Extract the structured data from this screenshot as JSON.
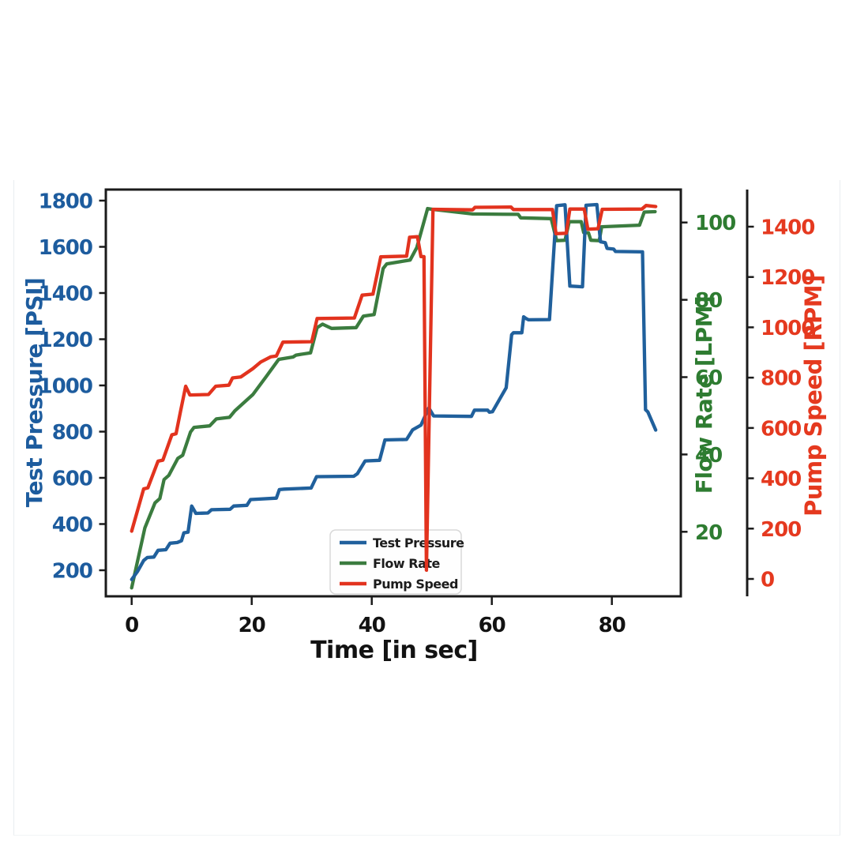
{
  "chart_data": {
    "type": "line",
    "title": "",
    "legend": {
      "position": "lower center"
    },
    "axes": {
      "x": {
        "label": "Time [in sec]",
        "ticks": [
          0,
          20,
          40,
          60,
          80
        ],
        "range": [
          -4,
          91.5
        ],
        "color": "#121212"
      },
      "pressure": {
        "label": "Test Pressure [PSI]",
        "ticks": [
          200,
          400,
          600,
          800,
          1000,
          1200,
          1400,
          1600,
          1800
        ],
        "range": [
          60,
          1845
        ],
        "side": "left",
        "color": "#1d5c9e"
      },
      "flow": {
        "label": "Flow Rate [LPM]",
        "ticks": [
          20,
          40,
          60,
          80,
          100
        ],
        "range": [
          3,
          108
        ],
        "side": "right",
        "color": "#2e7c31"
      },
      "speed": {
        "label": "Pump Speed [RPM]",
        "ticks": [
          0,
          200,
          400,
          600,
          800,
          1000,
          1200,
          1400
        ],
        "range": [
          -70,
          1545
        ],
        "side": "right-offset",
        "color": "#e5391f"
      }
    },
    "series": [
      {
        "name": "Test Pressure",
        "axis": "pressure",
        "color": "#20609c",
        "zorder": 2,
        "points": [
          [
            0,
            160
          ],
          [
            1,
            196
          ],
          [
            2,
            242
          ],
          [
            2.6,
            255
          ],
          [
            3.7,
            257
          ],
          [
            4.4,
            286
          ],
          [
            5.7,
            289
          ],
          [
            6.4,
            317
          ],
          [
            7.6,
            320
          ],
          [
            8.3,
            328
          ],
          [
            8.7,
            362
          ],
          [
            9.4,
            365
          ],
          [
            10,
            478
          ],
          [
            10.7,
            446
          ],
          [
            12.7,
            448
          ],
          [
            13.3,
            462
          ],
          [
            16.4,
            464
          ],
          [
            17,
            478
          ],
          [
            19.2,
            481
          ],
          [
            19.8,
            506
          ],
          [
            24.1,
            512
          ],
          [
            24.6,
            549
          ],
          [
            25.4,
            551
          ],
          [
            29.9,
            556
          ],
          [
            30.8,
            605
          ],
          [
            37,
            607
          ],
          [
            37.6,
            618
          ],
          [
            38.9,
            673
          ],
          [
            41.3,
            676
          ],
          [
            42.2,
            764
          ],
          [
            45.8,
            766
          ],
          [
            46.8,
            808
          ],
          [
            48.2,
            828
          ],
          [
            49.5,
            903
          ],
          [
            50.3,
            868
          ],
          [
            56.6,
            866
          ],
          [
            57.1,
            893
          ],
          [
            59.3,
            893
          ],
          [
            59.6,
            884
          ],
          [
            60.1,
            886
          ],
          [
            62.4,
            990
          ],
          [
            63.3,
            1220
          ],
          [
            63.6,
            1228
          ],
          [
            65,
            1228
          ],
          [
            65.3,
            1297
          ],
          [
            65.7,
            1290
          ],
          [
            66.1,
            1284
          ],
          [
            69.6,
            1285
          ],
          [
            70.8,
            1778
          ],
          [
            72.2,
            1782
          ],
          [
            73,
            1430
          ],
          [
            75.1,
            1427
          ],
          [
            75.7,
            1780
          ],
          [
            77.5,
            1783
          ],
          [
            78.1,
            1622
          ],
          [
            78.9,
            1618
          ],
          [
            79.2,
            1593
          ],
          [
            80.3,
            1590
          ],
          [
            80.6,
            1580
          ],
          [
            85.1,
            1578
          ],
          [
            85.6,
            895
          ],
          [
            86,
            885
          ],
          [
            87.3,
            807
          ]
        ]
      },
      {
        "name": "Flow Rate",
        "axis": "flow",
        "color": "#3b7c3f",
        "zorder": 1,
        "points": [
          [
            0,
            5.5
          ],
          [
            2.2,
            21
          ],
          [
            3.9,
            27.5
          ],
          [
            4.7,
            28.6
          ],
          [
            5.4,
            33.5
          ],
          [
            6.2,
            34.6
          ],
          [
            7.7,
            39
          ],
          [
            8.5,
            39.8
          ],
          [
            9.8,
            45.8
          ],
          [
            10.4,
            47
          ],
          [
            13,
            47.4
          ],
          [
            14.1,
            49.2
          ],
          [
            16.3,
            49.6
          ],
          [
            17.2,
            51.3
          ],
          [
            20.2,
            55.5
          ],
          [
            22.4,
            60.1
          ],
          [
            24.5,
            64.6
          ],
          [
            26.9,
            65.2
          ],
          [
            27.4,
            65.7
          ],
          [
            29.8,
            66.3
          ],
          [
            30.9,
            72.8
          ],
          [
            31.8,
            73.7
          ],
          [
            33.3,
            72.6
          ],
          [
            37.4,
            72.8
          ],
          [
            38.6,
            75.8
          ],
          [
            40.4,
            76.2
          ],
          [
            41.9,
            88.1
          ],
          [
            42.5,
            89.3
          ],
          [
            46.4,
            90.3
          ],
          [
            47.5,
            93.5
          ],
          [
            49.3,
            103.6
          ],
          [
            50.2,
            103.4
          ],
          [
            56.8,
            102.2
          ],
          [
            64.4,
            102.1
          ],
          [
            64.8,
            101.2
          ],
          [
            69.9,
            101
          ],
          [
            70.8,
            95.3
          ],
          [
            72.2,
            95.4
          ],
          [
            72.9,
            100.2
          ],
          [
            74.9,
            100.2
          ],
          [
            75.3,
            97.4
          ],
          [
            76.1,
            97.3
          ],
          [
            76.5,
            95.4
          ],
          [
            77.9,
            95.3
          ],
          [
            78.3,
            98.9
          ],
          [
            84.6,
            99.3
          ],
          [
            85.4,
            102.7
          ],
          [
            87.2,
            102.8
          ]
        ]
      },
      {
        "name": "Pump Speed",
        "axis": "speed",
        "color": "#e2331e",
        "zorder": 3,
        "points": [
          [
            0,
            190
          ],
          [
            2,
            358
          ],
          [
            2.7,
            362
          ],
          [
            4.4,
            468
          ],
          [
            5.2,
            472
          ],
          [
            6.7,
            573
          ],
          [
            7.4,
            577
          ],
          [
            8.1,
            662
          ],
          [
            9,
            766
          ],
          [
            9.7,
            731
          ],
          [
            12.8,
            733
          ],
          [
            14,
            766
          ],
          [
            16.2,
            770
          ],
          [
            16.8,
            799
          ],
          [
            18.2,
            803
          ],
          [
            20.2,
            836
          ],
          [
            21.5,
            862
          ],
          [
            23.2,
            883
          ],
          [
            24.1,
            886
          ],
          [
            25.2,
            941
          ],
          [
            30,
            943
          ],
          [
            30.9,
            1035
          ],
          [
            37.1,
            1037
          ],
          [
            38.4,
            1128
          ],
          [
            40.2,
            1132
          ],
          [
            41.5,
            1280
          ],
          [
            45.8,
            1283
          ],
          [
            46.3,
            1358
          ],
          [
            47.6,
            1360
          ],
          [
            48.2,
            1281
          ],
          [
            48.7,
            1281
          ],
          [
            49.1,
            35
          ],
          [
            50.2,
            1469
          ],
          [
            56.8,
            1467
          ],
          [
            57.2,
            1477
          ],
          [
            63.2,
            1478
          ],
          [
            63.6,
            1468
          ],
          [
            70.1,
            1468
          ],
          [
            70.7,
            1372
          ],
          [
            72.4,
            1374
          ],
          [
            73,
            1470
          ],
          [
            75.4,
            1470
          ],
          [
            76,
            1390
          ],
          [
            77.7,
            1392
          ],
          [
            78.4,
            1469
          ],
          [
            85,
            1470
          ],
          [
            85.7,
            1484
          ],
          [
            87.3,
            1480
          ]
        ]
      }
    ]
  }
}
